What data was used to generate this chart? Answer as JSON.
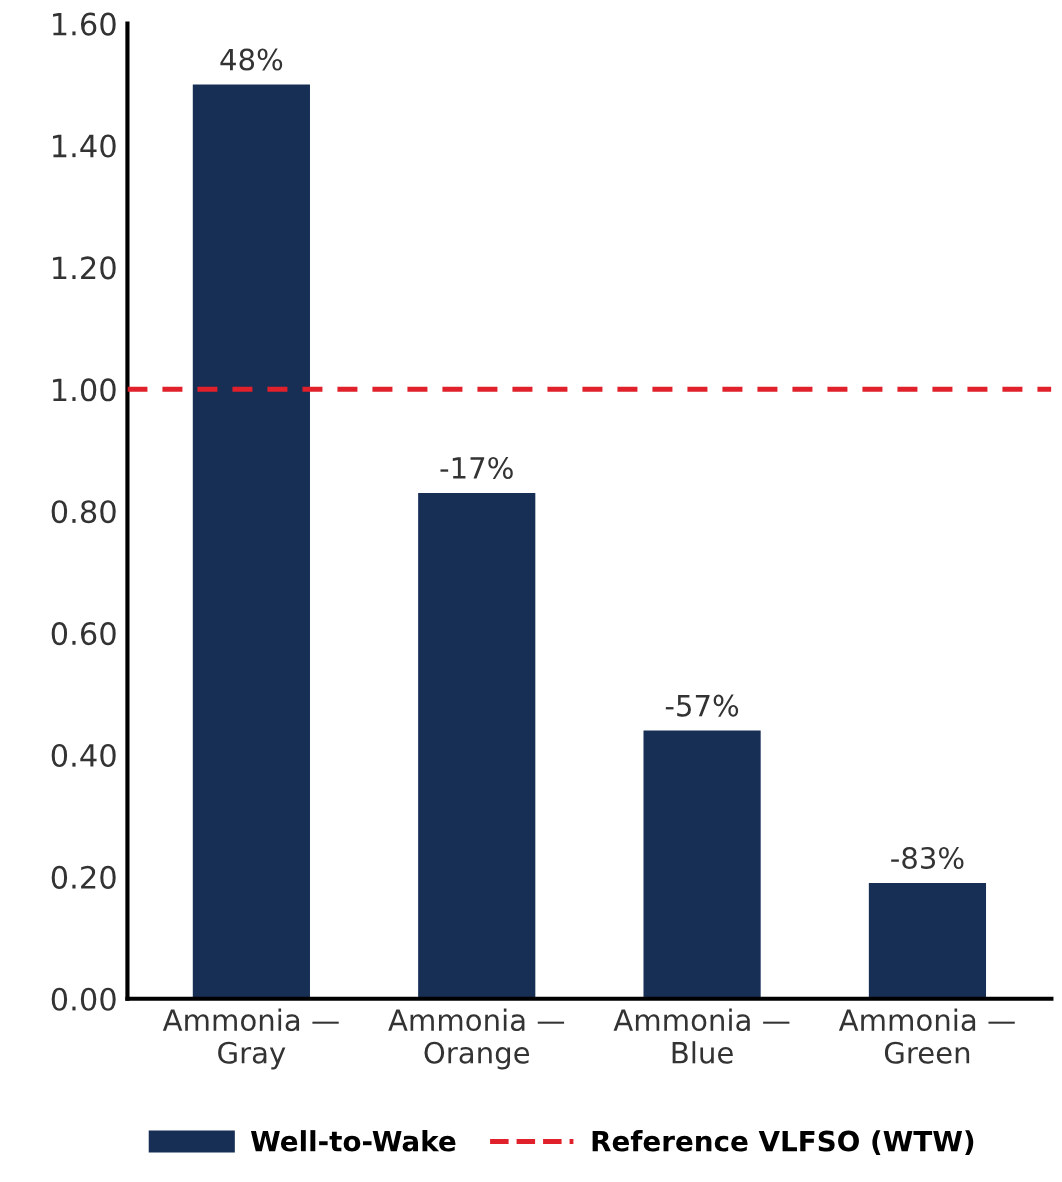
{
  "chart_data": {
    "type": "bar",
    "categories": [
      "Ammonia —\nGray",
      "Ammonia —\nOrange",
      "Ammonia —\nBlue",
      "Ammonia —\nGreen"
    ],
    "series": [
      {
        "name": "Well-to-Wake",
        "color": "#172f55",
        "values": [
          1.5,
          0.83,
          0.44,
          0.19
        ]
      }
    ],
    "annotations": [
      {
        "text": "48%",
        "x": "Ammonia —\nGray",
        "y": 1.5
      },
      {
        "text": "-17%",
        "x": "Ammonia —\nOrange",
        "y": 0.83
      },
      {
        "text": "-57%",
        "x": "Ammonia —\nBlue",
        "y": 0.44
      },
      {
        "text": "-83%",
        "x": "Ammonia —\nGreen",
        "y": 0.19
      }
    ],
    "ylim": [
      0,
      1.6
    ],
    "yticks": [
      {
        "value": 0,
        "label": "0.00"
      },
      {
        "value": 0.2,
        "label": "0.20"
      },
      {
        "value": 0.4,
        "label": "0.40"
      },
      {
        "value": 0.6,
        "label": "0.60"
      },
      {
        "value": 0.8,
        "label": "0.80"
      },
      {
        "value": 1.0,
        "label": "1.00"
      },
      {
        "value": 1.2,
        "label": "1.20"
      },
      {
        "value": 1.4,
        "label": "1.40"
      },
      {
        "value": 1.6,
        "label": "1.60"
      }
    ],
    "ref_lines": [
      {
        "axis": "y",
        "value": 1.0,
        "label": "Reference VLFSO (WTW)",
        "color": "#e0202a",
        "line_style": "dashed"
      }
    ],
    "grid": false,
    "legend": "bottom"
  }
}
